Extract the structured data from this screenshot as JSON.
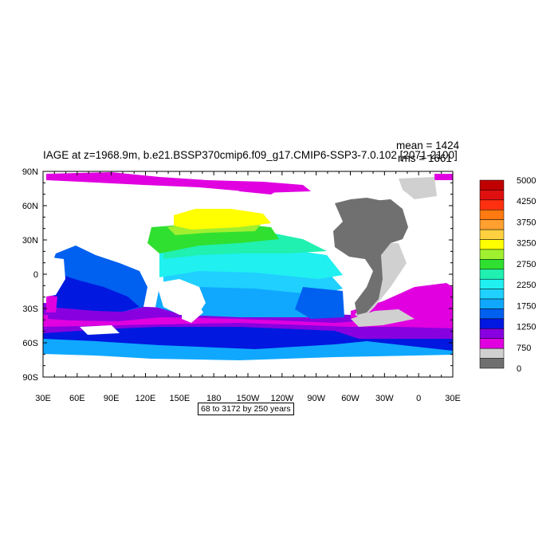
{
  "title": "IAGE at z=1968.9m, b.e21.BSSP370cmip6.f09_g17.CMIP6-SSP3-7.0.102 [2071-2100]",
  "stats": {
    "mean": "mean = 1424",
    "rms": "rms = 1661"
  },
  "subtitle": "68 to 3172 by 250 years",
  "axes": {
    "lat_ticks": [
      "90N",
      "60N",
      "30N",
      "0",
      "30S",
      "60S",
      "90S"
    ],
    "lon_ticks": [
      "30E",
      "60E",
      "90E",
      "120E",
      "150E",
      "180",
      "150W",
      "120W",
      "90W",
      "60W",
      "30W",
      "0",
      "30E"
    ]
  },
  "colorbar": {
    "labels": [
      "5000",
      "4250",
      "3750",
      "3250",
      "2750",
      "2250",
      "1750",
      "1250",
      "750",
      "0"
    ],
    "colors": [
      "#c00000",
      "#e01010",
      "#ff3010",
      "#ff7a10",
      "#ffa030",
      "#ffd040",
      "#ffff00",
      "#a0f030",
      "#30e030",
      "#20f0b0",
      "#20f0f0",
      "#20d0ff",
      "#10a8ff",
      "#0060f0",
      "#0018e0",
      "#8800e0",
      "#e000e0",
      "#d0d0d0",
      "#707070"
    ]
  },
  "colors": {
    "land": "#707070",
    "ice": "#d0d0d0",
    "background": "#ffffff"
  }
}
